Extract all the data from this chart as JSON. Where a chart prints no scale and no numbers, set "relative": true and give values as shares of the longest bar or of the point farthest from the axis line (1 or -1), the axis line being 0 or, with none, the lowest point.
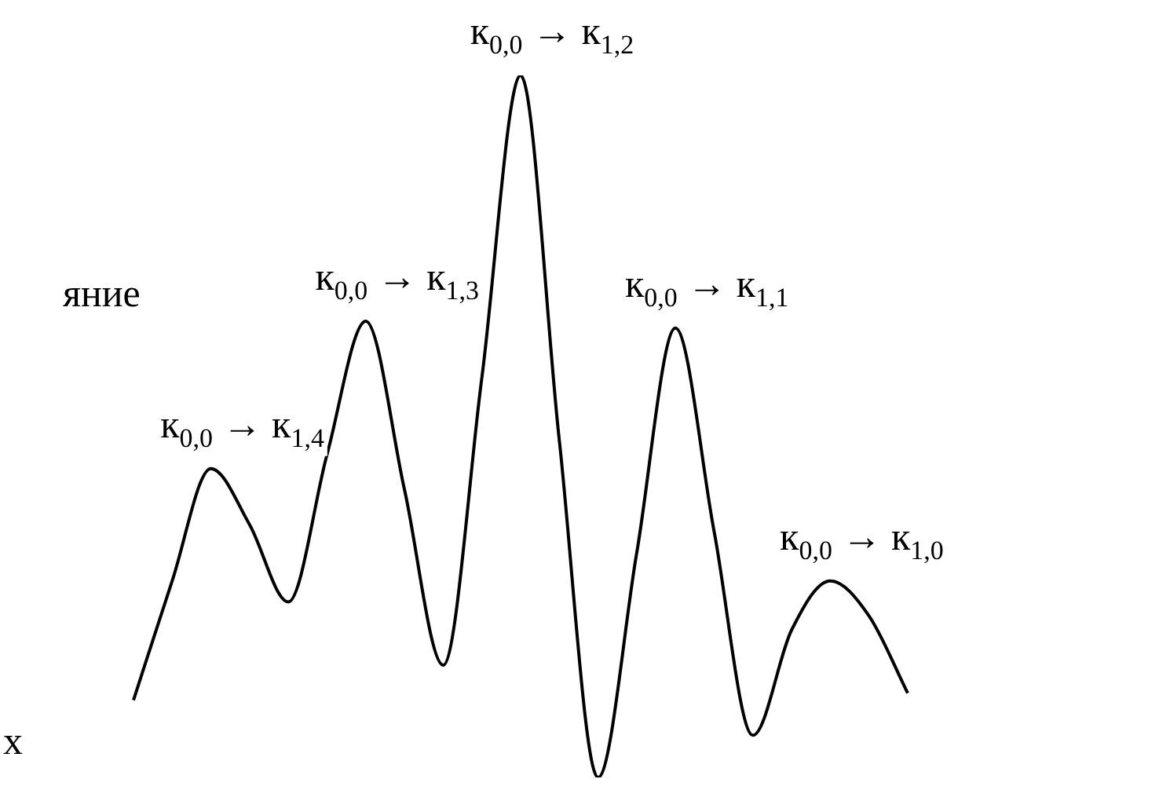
{
  "chart_data": {
    "type": "line",
    "relative": true,
    "legend": false,
    "marker": "none",
    "categories": [
      null,
      null,
      null,
      null,
      null,
      null,
      null,
      null,
      null,
      null,
      null,
      null,
      null,
      null,
      null,
      null,
      null,
      null,
      null,
      null,
      null
    ],
    "series": [
      {
        "color": "#000000",
        "values": [
          0.11,
          0.28,
          0.44,
          0.36,
          0.25,
          0.46,
          0.65,
          0.41,
          0.16,
          0.57,
          1,
          0.48,
          0,
          0.32,
          0.64,
          0.35,
          0.06,
          0.21,
          0.28,
          0.23,
          0.12
        ]
      }
    ],
    "annotations": [
      "к$_{0,0}$ → к$_{1,4}$",
      "к$_{0,0}$ → к$_{1,3}$",
      "к$_{0,0}$ → к$_{1,2}$",
      "к$_{0,0}$ → к$_{1,1}$",
      "к$_{0,0}$ → к$_{1,0}$",
      "яние",
      "х"
    ]
  }
}
